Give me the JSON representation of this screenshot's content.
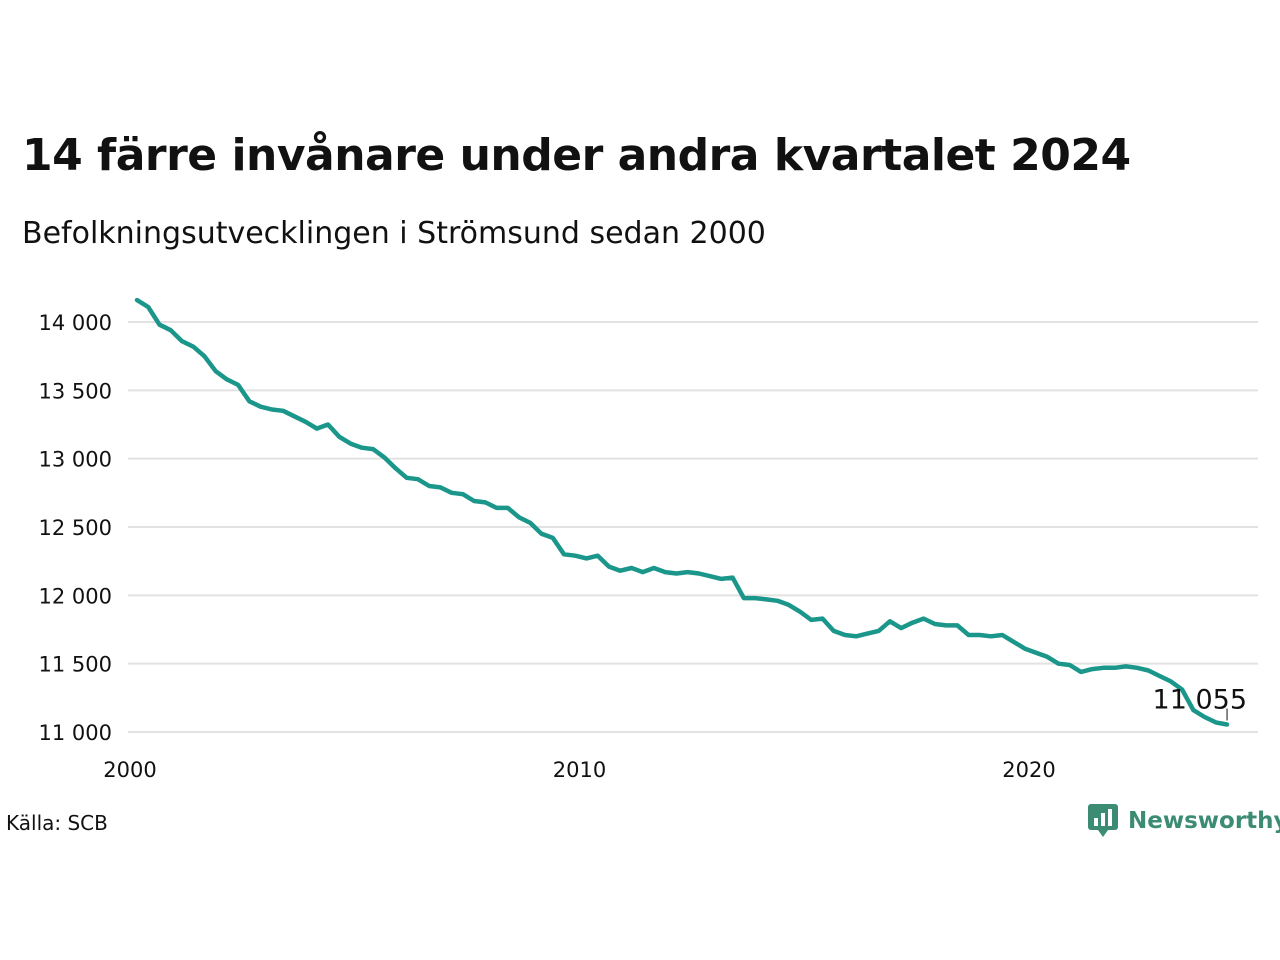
{
  "header": {
    "title": "14 färre invånare under andra kvartalet 2024",
    "subtitle": "Befolkningsutvecklingen i Strömsund sedan 2000"
  },
  "footer": {
    "source": "Källa: SCB",
    "brand": "Newsworthy"
  },
  "colors": {
    "line": "#1b968a",
    "grid": "#e2e2e2",
    "text": "#111111",
    "brand": "#3c8c74"
  },
  "chart_data": {
    "type": "line",
    "title": "14 färre invånare under andra kvartalet 2024",
    "subtitle": "Befolkningsutvecklingen i Strömsund sedan 2000",
    "xlabel": "",
    "ylabel": "",
    "xlim": [
      2000,
      2025
    ],
    "ylim": [
      11000,
      14200
    ],
    "grid": true,
    "legend": "none",
    "x_ticks": [
      {
        "value": 2000,
        "label": "2000"
      },
      {
        "value": 2010,
        "label": "2010"
      },
      {
        "value": 2020,
        "label": "2020"
      }
    ],
    "y_ticks": [
      {
        "value": 11000,
        "label": "11 000"
      },
      {
        "value": 11500,
        "label": "11 500"
      },
      {
        "value": 12000,
        "label": "12 000"
      },
      {
        "value": 12500,
        "label": "12 500"
      },
      {
        "value": 13000,
        "label": "13 000"
      },
      {
        "value": 13500,
        "label": "13 500"
      },
      {
        "value": 14000,
        "label": "14 000"
      }
    ],
    "end_label": "11 055",
    "series": [
      {
        "x": [
          2000.0,
          2000.25,
          2000.5,
          2000.75,
          2001.0,
          2001.25,
          2001.5,
          2001.75,
          2002.0,
          2002.25,
          2002.5,
          2002.75,
          2003.0,
          2003.25,
          2003.5,
          2003.75,
          2004.0,
          2004.25,
          2004.5,
          2004.75,
          2005.0,
          2005.25,
          2005.5,
          2005.75,
          2006.0,
          2006.25,
          2006.5,
          2006.75,
          2007.0,
          2007.25,
          2007.5,
          2007.75,
          2008.0,
          2008.25,
          2008.5,
          2008.75,
          2009.0,
          2009.25,
          2009.5,
          2009.75,
          2010.0,
          2010.25,
          2010.5,
          2010.75,
          2011.0,
          2011.25,
          2011.5,
          2011.75,
          2012.0,
          2012.25,
          2012.5,
          2012.75,
          2013.0,
          2013.25,
          2013.5,
          2013.75,
          2014.0,
          2014.25,
          2014.5,
          2014.75,
          2015.0,
          2015.25,
          2015.5,
          2015.75,
          2016.0,
          2016.25,
          2016.5,
          2016.75,
          2017.0,
          2017.25,
          2017.5,
          2017.75,
          2018.0,
          2018.25,
          2018.5,
          2018.75,
          2019.0,
          2019.25,
          2019.5,
          2019.75,
          2020.0,
          2020.25,
          2020.5,
          2020.75,
          2021.0,
          2021.25,
          2021.5,
          2021.75,
          2022.0,
          2022.25,
          2022.5,
          2022.75,
          2023.0,
          2023.25,
          2023.5,
          2023.75,
          2024.0,
          2024.25
        ],
        "values": [
          14160,
          14110,
          13980,
          13940,
          13860,
          13820,
          13750,
          13640,
          13580,
          13540,
          13420,
          13380,
          13360,
          13350,
          13310,
          13270,
          13220,
          13250,
          13160,
          13110,
          13080,
          13070,
          13010,
          12930,
          12860,
          12850,
          12800,
          12790,
          12750,
          12740,
          12690,
          12680,
          12640,
          12640,
          12570,
          12530,
          12450,
          12420,
          12300,
          12290,
          12270,
          12290,
          12210,
          12180,
          12200,
          12170,
          12200,
          12170,
          12160,
          12170,
          12160,
          12140,
          12120,
          12130,
          11980,
          11980,
          11970,
          11960,
          11930,
          11880,
          11820,
          11830,
          11740,
          11710,
          11700,
          11720,
          11740,
          11810,
          11760,
          11800,
          11830,
          11790,
          11780,
          11780,
          11710,
          11710,
          11700,
          11710,
          11660,
          11610,
          11580,
          11550,
          11500,
          11490,
          11440,
          11460,
          11470,
          11470,
          11480,
          11470,
          11450,
          11410,
          11370,
          11310,
          11160,
          11110,
          11070,
          11055
        ]
      }
    ]
  }
}
